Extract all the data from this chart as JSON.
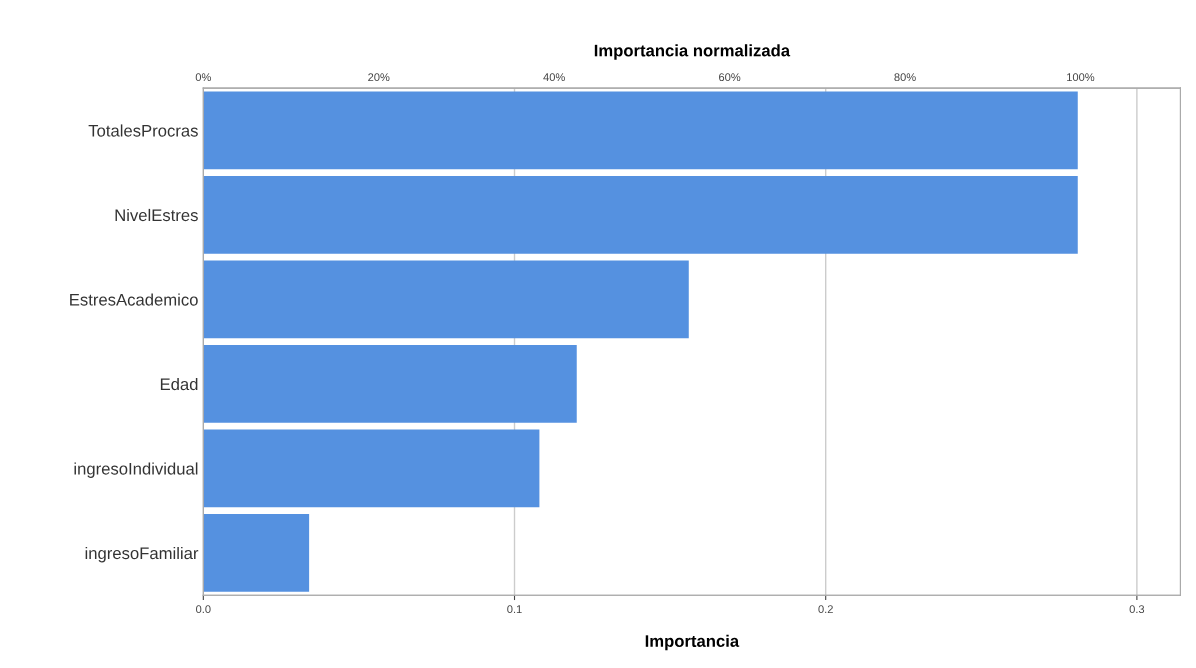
{
  "chart_data": {
    "type": "bar",
    "orientation": "horizontal",
    "xlabel": "Importancia",
    "x2label": "Importancia normalizada",
    "categories": [
      "TotalesProcras",
      "NivelEstres",
      "EstresAcademico",
      "Edad",
      "ingresoIndividual",
      "ingresoFamiliar"
    ],
    "values": [
      0.281,
      0.281,
      0.156,
      0.12,
      0.108,
      0.034
    ],
    "color": "#5591e0",
    "xlim": [
      0,
      0.314
    ],
    "xticks": [
      {
        "value": 0,
        "label": "0.0"
      },
      0.1,
      0.2,
      0.3
    ],
    "x2lim": [
      0,
      111.4
    ],
    "x2ticks": [
      {
        "value": 0,
        "label": "0%"
      },
      {
        "value": 20,
        "label": "20%"
      },
      {
        "value": 40,
        "label": "40%"
      },
      {
        "value": 60,
        "label": "60%"
      },
      {
        "value": 80,
        "label": "80%"
      },
      {
        "value": 100,
        "label": "100%"
      }
    ],
    "grid": "x"
  }
}
